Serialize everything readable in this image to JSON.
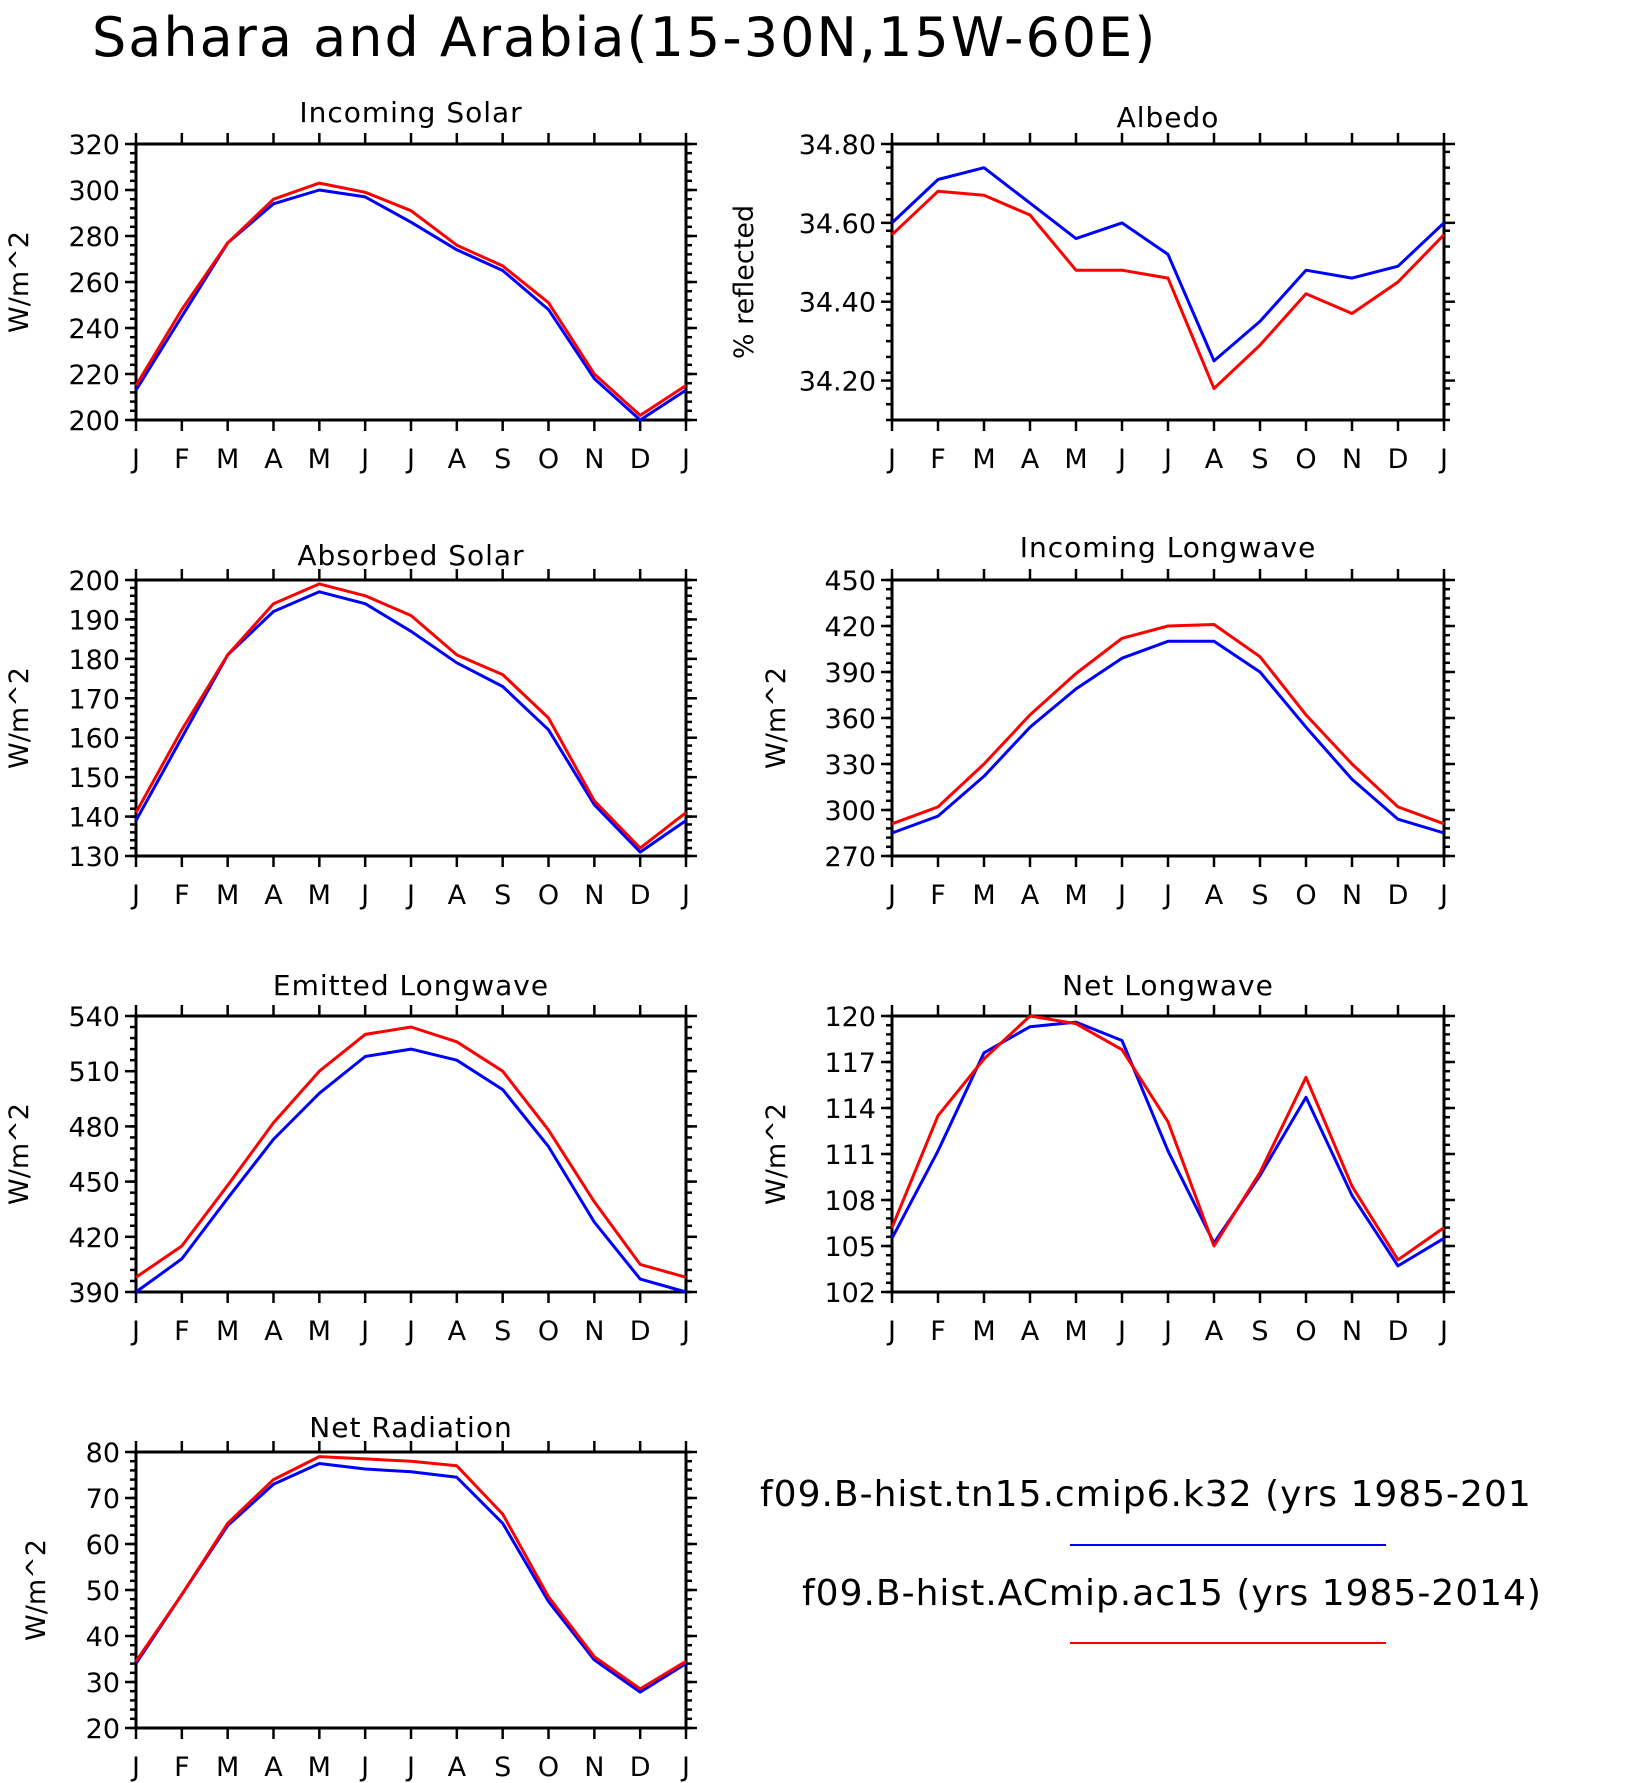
{
  "title": "Sahara and Arabia(15-30N,15W-60E)",
  "month_labels": [
    "J",
    "F",
    "M",
    "A",
    "M",
    "J",
    "J",
    "A",
    "S",
    "O",
    "N",
    "D",
    "J"
  ],
  "legend": [
    {
      "label": "f09.B-hist.tn15.cmip6.k32 (yrs 1985-201",
      "color": "#0000ff"
    },
    {
      "label": "f09.B-hist.ACmip.ac15 (yrs 1985-2014)",
      "color": "#ff0000"
    }
  ],
  "chart_data": [
    {
      "type": "line",
      "title": "Incoming Solar",
      "ylabel": "W/m^2",
      "ylim": [
        200,
        320
      ],
      "yticks": [
        "200",
        "220",
        "240",
        "260",
        "280",
        "300",
        "320"
      ],
      "series": [
        {
          "color": "#0000ff",
          "values": [
            213,
            245,
            277,
            294,
            300,
            297,
            286,
            274,
            265,
            248,
            218,
            200,
            213
          ]
        },
        {
          "color": "#ff0000",
          "values": [
            215,
            248,
            277,
            296,
            303,
            299,
            291,
            276,
            267,
            251,
            220,
            202,
            215
          ]
        }
      ]
    },
    {
      "type": "line",
      "title": "Albedo",
      "ylabel": "% reflected",
      "ylim": [
        34.1,
        34.8
      ],
      "yticks": [
        "34.20",
        "34.40",
        "34.60",
        "34.80"
      ],
      "series": [
        {
          "color": "#0000ff",
          "values": [
            34.6,
            34.71,
            34.74,
            34.65,
            34.56,
            34.6,
            34.52,
            34.25,
            34.35,
            34.48,
            34.46,
            34.49,
            34.6
          ]
        },
        {
          "color": "#ff0000",
          "values": [
            34.57,
            34.68,
            34.67,
            34.62,
            34.48,
            34.48,
            34.46,
            34.18,
            34.29,
            34.42,
            34.37,
            34.45,
            34.57
          ]
        }
      ]
    },
    {
      "type": "line",
      "title": "Absorbed Solar",
      "ylabel": "W/m^2",
      "ylim": [
        130,
        200
      ],
      "yticks": [
        "130",
        "140",
        "150",
        "160",
        "170",
        "180",
        "190",
        "200"
      ],
      "series": [
        {
          "color": "#0000ff",
          "values": [
            139,
            160,
            181,
            192,
            197,
            194,
            187,
            179,
            173,
            162,
            143,
            131,
            139
          ]
        },
        {
          "color": "#ff0000",
          "values": [
            141,
            162,
            181,
            194,
            199,
            196,
            191,
            181,
            176,
            165,
            144,
            132,
            141
          ]
        }
      ]
    },
    {
      "type": "line",
      "title": "Incoming Longwave",
      "ylabel": "W/m^2",
      "ylim": [
        270,
        450
      ],
      "yticks": [
        "270",
        "300",
        "330",
        "360",
        "390",
        "420",
        "450"
      ],
      "series": [
        {
          "color": "#0000ff",
          "values": [
            285,
            296,
            322,
            354,
            379,
            399,
            410,
            410,
            390,
            354,
            320,
            294,
            285
          ]
        },
        {
          "color": "#ff0000",
          "values": [
            291,
            302,
            330,
            362,
            389,
            412,
            420,
            421,
            400,
            362,
            330,
            302,
            291
          ]
        }
      ]
    },
    {
      "type": "line",
      "title": "Emitted Longwave",
      "ylabel": "W/m^2",
      "ylim": [
        390,
        540
      ],
      "yticks": [
        "390",
        "420",
        "450",
        "480",
        "510",
        "540"
      ],
      "series": [
        {
          "color": "#0000ff",
          "values": [
            390,
            408,
            441,
            473,
            498,
            518,
            522,
            516,
            500,
            469,
            428,
            397,
            390
          ]
        },
        {
          "color": "#ff0000",
          "values": [
            398,
            415,
            448,
            482,
            510,
            530,
            534,
            526,
            510,
            478,
            439,
            405,
            398
          ]
        }
      ]
    },
    {
      "type": "line",
      "title": "Net Longwave",
      "ylabel": "W/m^2",
      "ylim": [
        102,
        120
      ],
      "yticks": [
        "102",
        "105",
        "108",
        "111",
        "114",
        "117",
        "120"
      ],
      "series": [
        {
          "color": "#0000ff",
          "values": [
            105.5,
            111.2,
            117.6,
            119.3,
            119.6,
            118.4,
            111.2,
            105.2,
            109.6,
            114.7,
            108.3,
            103.7,
            105.5
          ]
        },
        {
          "color": "#ff0000",
          "values": [
            106.2,
            113.5,
            117.2,
            120.0,
            119.5,
            117.8,
            113.1,
            105.0,
            109.8,
            116.0,
            108.9,
            104.1,
            106.2
          ]
        }
      ]
    },
    {
      "type": "line",
      "title": "Net Radiation",
      "ylabel": "W/m^2",
      "ylim": [
        20,
        80
      ],
      "yticks": [
        "20",
        "30",
        "40",
        "50",
        "60",
        "70",
        "80"
      ],
      "series": [
        {
          "color": "#0000ff",
          "values": [
            34,
            49,
            64,
            73,
            77.5,
            76.3,
            75.7,
            74.5,
            64.5,
            47.5,
            34.8,
            27.8,
            34
          ]
        },
        {
          "color": "#ff0000",
          "values": [
            34.5,
            49,
            64.5,
            74,
            79,
            78.5,
            78,
            77,
            66.5,
            48.5,
            35.5,
            28.5,
            34.5
          ]
        }
      ]
    }
  ]
}
